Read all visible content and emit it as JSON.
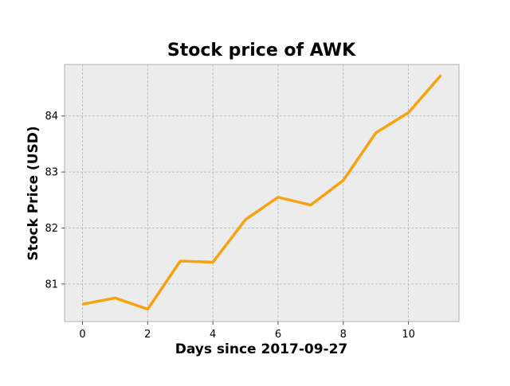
{
  "chart_data": {
    "type": "line",
    "title": "Stock price of AWK",
    "xlabel": "Days since 2017-09-27",
    "ylabel": "Stock Price (USD)",
    "xlim": [
      -0.55,
      11.55
    ],
    "ylim": [
      80.33,
      84.92
    ],
    "xticks": [
      0,
      2,
      4,
      6,
      8,
      10
    ],
    "yticks": [
      81,
      82,
      83,
      84
    ],
    "grid": true,
    "series": [
      {
        "color": "#f5a30f",
        "x": [
          0,
          1,
          2,
          3,
          4,
          5,
          6,
          7,
          8,
          9,
          10,
          11
        ],
        "y": [
          80.64,
          80.75,
          80.55,
          81.41,
          81.39,
          82.15,
          82.55,
          82.41,
          82.85,
          83.7,
          84.06,
          84.73
        ]
      }
    ]
  }
}
